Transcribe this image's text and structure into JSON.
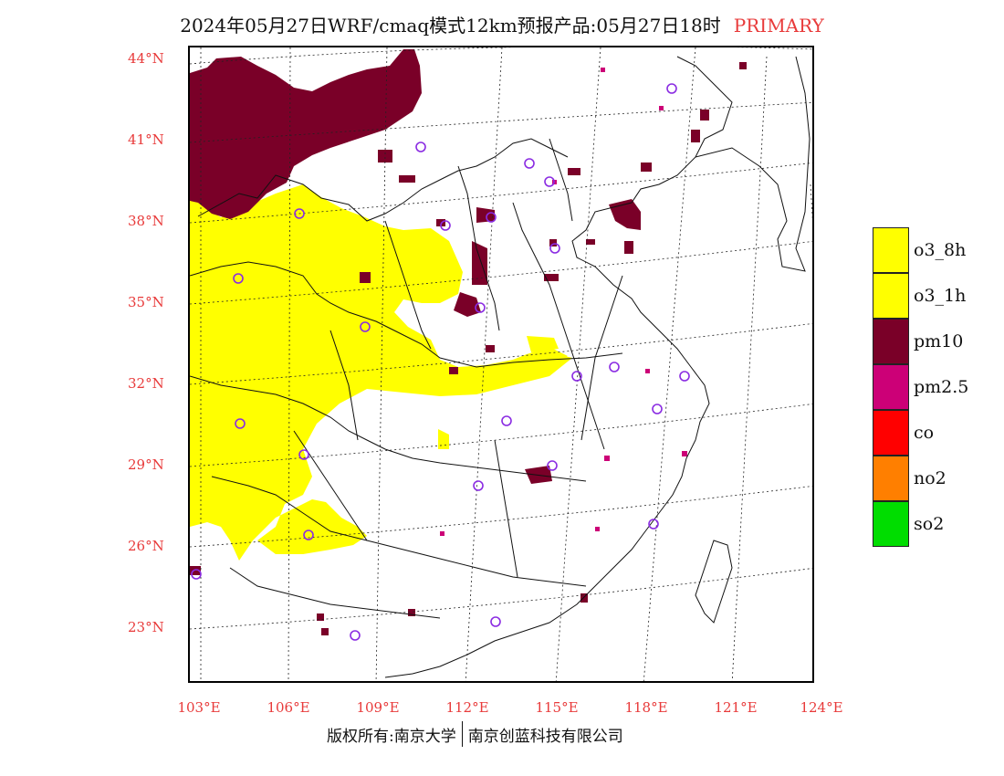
{
  "header": {
    "title": "2024年05月27日WRF/cmaq模式12km预报产品:05月27日18时",
    "tag": "PRIMARY"
  },
  "map": {
    "lat_labels": [
      "44°N",
      "41°N",
      "38°N",
      "35°N",
      "32°N",
      "29°N",
      "26°N",
      "23°N"
    ],
    "lon_labels": [
      "103°E",
      "106°E",
      "109°E",
      "112°E",
      "115°E",
      "118°E",
      "121°E",
      "124°E"
    ],
    "colors": {
      "o3_8h": "#ffff00",
      "o3_1h": "#ffff00",
      "pm10": "#7a0028",
      "pm2_5": "#cc0077",
      "co": "#ff0000",
      "no2": "#ff7f00",
      "so2": "#00dd00",
      "station": "#8a2be2",
      "lat_label": "#e83a3a"
    }
  },
  "legend": [
    {
      "label": "o3_8h",
      "color": "#ffff00"
    },
    {
      "label": "o3_1h",
      "color": "#ffff00"
    },
    {
      "label": "pm10",
      "color": "#7a0028"
    },
    {
      "label": "pm2.5",
      "color": "#cc0077"
    },
    {
      "label": "co",
      "color": "#ff0000"
    },
    {
      "label": "no2",
      "color": "#ff7f00"
    },
    {
      "label": "so2",
      "color": "#00dd00"
    }
  ],
  "footer": {
    "left": "版权所有:南京大学",
    "right": "南京创蓝科技有限公司"
  }
}
